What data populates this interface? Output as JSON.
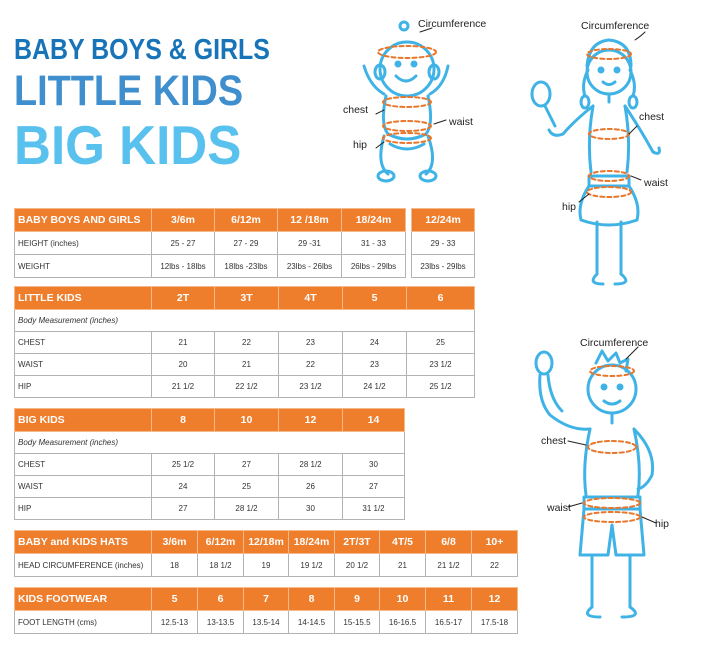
{
  "titles": {
    "line1": "BABY BOYS & GIRLS",
    "line2": "LITTLE KIDS",
    "line3": "BIG KIDS"
  },
  "baby_table": {
    "header": [
      "BABY BOYS AND GIRLS",
      "3/6m",
      "6/12m",
      "12 /18m",
      "18/24m"
    ],
    "rows": [
      [
        "HEIGHT (inches)",
        "25 - 27",
        "27 - 29",
        "29 -31",
        "31 - 33"
      ],
      [
        "WEIGHT",
        "12lbs - 18lbs",
        "18lbs -23lbs",
        "23lbs - 26lbs",
        "26lbs - 29lbs"
      ]
    ]
  },
  "baby_extra": {
    "header": "12/24m",
    "height": "29 - 33",
    "weight": "23lbs - 29lbs"
  },
  "little_kids_table": {
    "header": [
      "LITTLE KIDS",
      "2T",
      "3T",
      "4T",
      "5",
      "6"
    ],
    "subheader": "Body Measurement (inches)",
    "rows": [
      [
        "CHEST",
        "21",
        "22",
        "23",
        "24",
        "25"
      ],
      [
        "WAIST",
        "20",
        "21",
        "22",
        "23",
        "23 1/2"
      ],
      [
        "HIP",
        "21 1/2",
        "22 1/2",
        "23 1/2",
        "24 1/2",
        "25 1/2"
      ]
    ]
  },
  "big_kids_table": {
    "header": [
      "BIG KIDS",
      "8",
      "10",
      "12",
      "14"
    ],
    "subheader": "Body Measurement (inches)",
    "rows": [
      [
        "CHEST",
        "25 1/2",
        "27",
        "28 1/2",
        "30"
      ],
      [
        "WAIST",
        "24",
        "25",
        "26",
        "27"
      ],
      [
        "HIP",
        "27",
        "28 1/2",
        "30",
        "31 1/2"
      ]
    ]
  },
  "hats_table": {
    "header": [
      "BABY and KIDS HATS",
      "3/6m",
      "6/12m",
      "12/18m",
      "18/24m",
      "2T/3T",
      "4T/5",
      "6/8",
      "10+"
    ],
    "rows": [
      [
        "HEAD CIRCUMFERENCE (inches)",
        "18",
        "18 1/2",
        "19",
        "19 1/2",
        "20 1/2",
        "21",
        "21 1/2",
        "22"
      ]
    ]
  },
  "footwear_table": {
    "header": [
      "KIDS FOOTWEAR",
      "5",
      "6",
      "7",
      "8",
      "9",
      "10",
      "11",
      "12"
    ],
    "rows": [
      [
        "FOOT LENGTH (cms)",
        "12.5-13",
        "13-13.5",
        "13.5-14",
        "14-14.5",
        "15-15.5",
        "16-16.5",
        "16.5-17",
        "17.5-18"
      ]
    ]
  },
  "figures": {
    "baby": {
      "circumference": "Circumference",
      "chest": "chest",
      "waist": "waist",
      "hip": "hip"
    },
    "girl": {
      "circumference": "Circumference",
      "chest": "chest",
      "waist": "waist",
      "hip": "hip"
    },
    "boy": {
      "circumference": "Circumference",
      "chest": "chest",
      "waist": "waist",
      "hip": "hip"
    }
  },
  "colors": {
    "header_orange": "#ee7d2c",
    "title_dark_blue": "#1874b8",
    "title_mid_blue": "#3f8fce",
    "title_light_blue": "#59c1ee",
    "figure_blue": "#3fb3e6",
    "measure_orange": "#e8762b"
  }
}
